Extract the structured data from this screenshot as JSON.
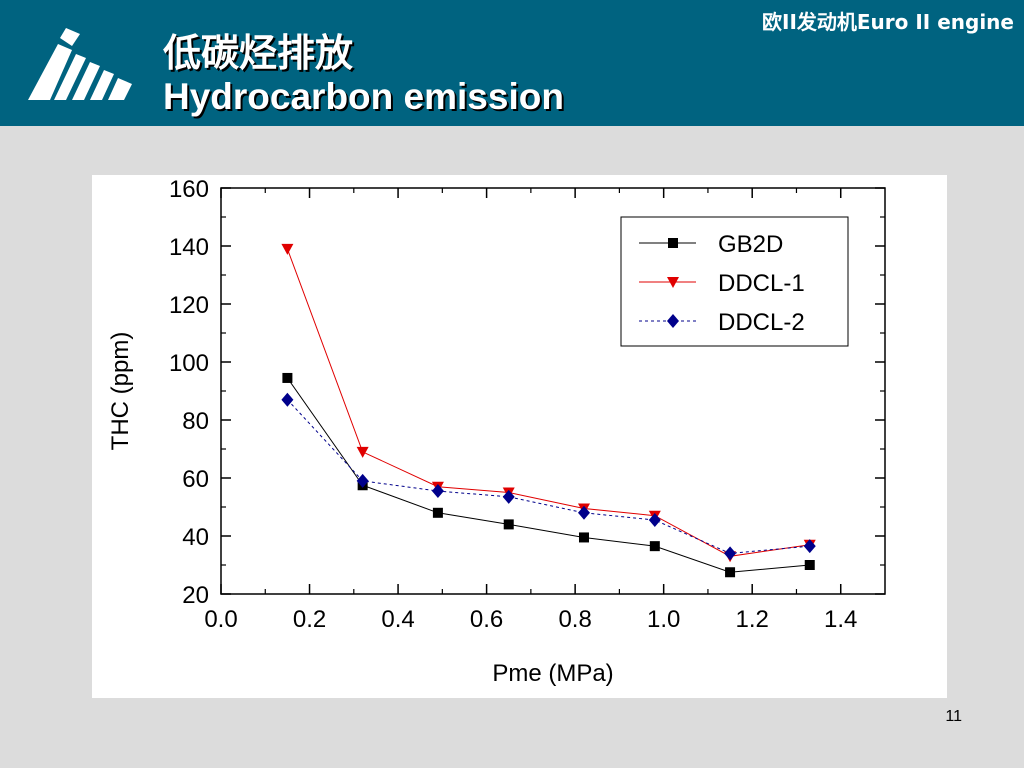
{
  "header": {
    "title_cn": "低碳烃排放",
    "title_en": "Hydrocarbon emission",
    "subtitle": "欧II发动机Euro II engine"
  },
  "page_number": "11",
  "colors": {
    "header_bg": "#006380",
    "slide_bg": "#dcdcdc"
  },
  "chart_data": {
    "type": "line",
    "title": "",
    "xlabel": "Pme (MPa)",
    "ylabel": "THC (ppm)",
    "xlim": [
      0.0,
      1.5
    ],
    "ylim": [
      20,
      160
    ],
    "xticks": [
      "0.0",
      "0.2",
      "0.4",
      "0.6",
      "0.8",
      "1.0",
      "1.2",
      "1.4"
    ],
    "yticks": [
      "20",
      "40",
      "60",
      "80",
      "100",
      "120",
      "140",
      "160"
    ],
    "legend_position": "top-right",
    "series": [
      {
        "name": "GB2D",
        "color": "#000000",
        "marker": "square",
        "line": "solid",
        "x": [
          0.15,
          0.32,
          0.49,
          0.65,
          0.82,
          0.98,
          1.15,
          1.33
        ],
        "y": [
          94.5,
          57.5,
          48,
          44,
          39.5,
          36.5,
          27.5,
          30
        ]
      },
      {
        "name": "DDCL-1",
        "color": "#e00000",
        "marker": "triangle-down",
        "line": "solid",
        "x": [
          0.15,
          0.32,
          0.49,
          0.65,
          0.82,
          0.98,
          1.15,
          1.33
        ],
        "y": [
          139,
          69,
          57,
          55,
          49.5,
          47,
          33,
          37
        ]
      },
      {
        "name": "DDCL-2",
        "color": "#00008b",
        "marker": "diamond",
        "line": "dashed",
        "x": [
          0.15,
          0.32,
          0.49,
          0.65,
          0.82,
          0.98,
          1.15,
          1.33
        ],
        "y": [
          87,
          59,
          55.5,
          53.5,
          48,
          45.5,
          34,
          36.5
        ]
      }
    ]
  }
}
